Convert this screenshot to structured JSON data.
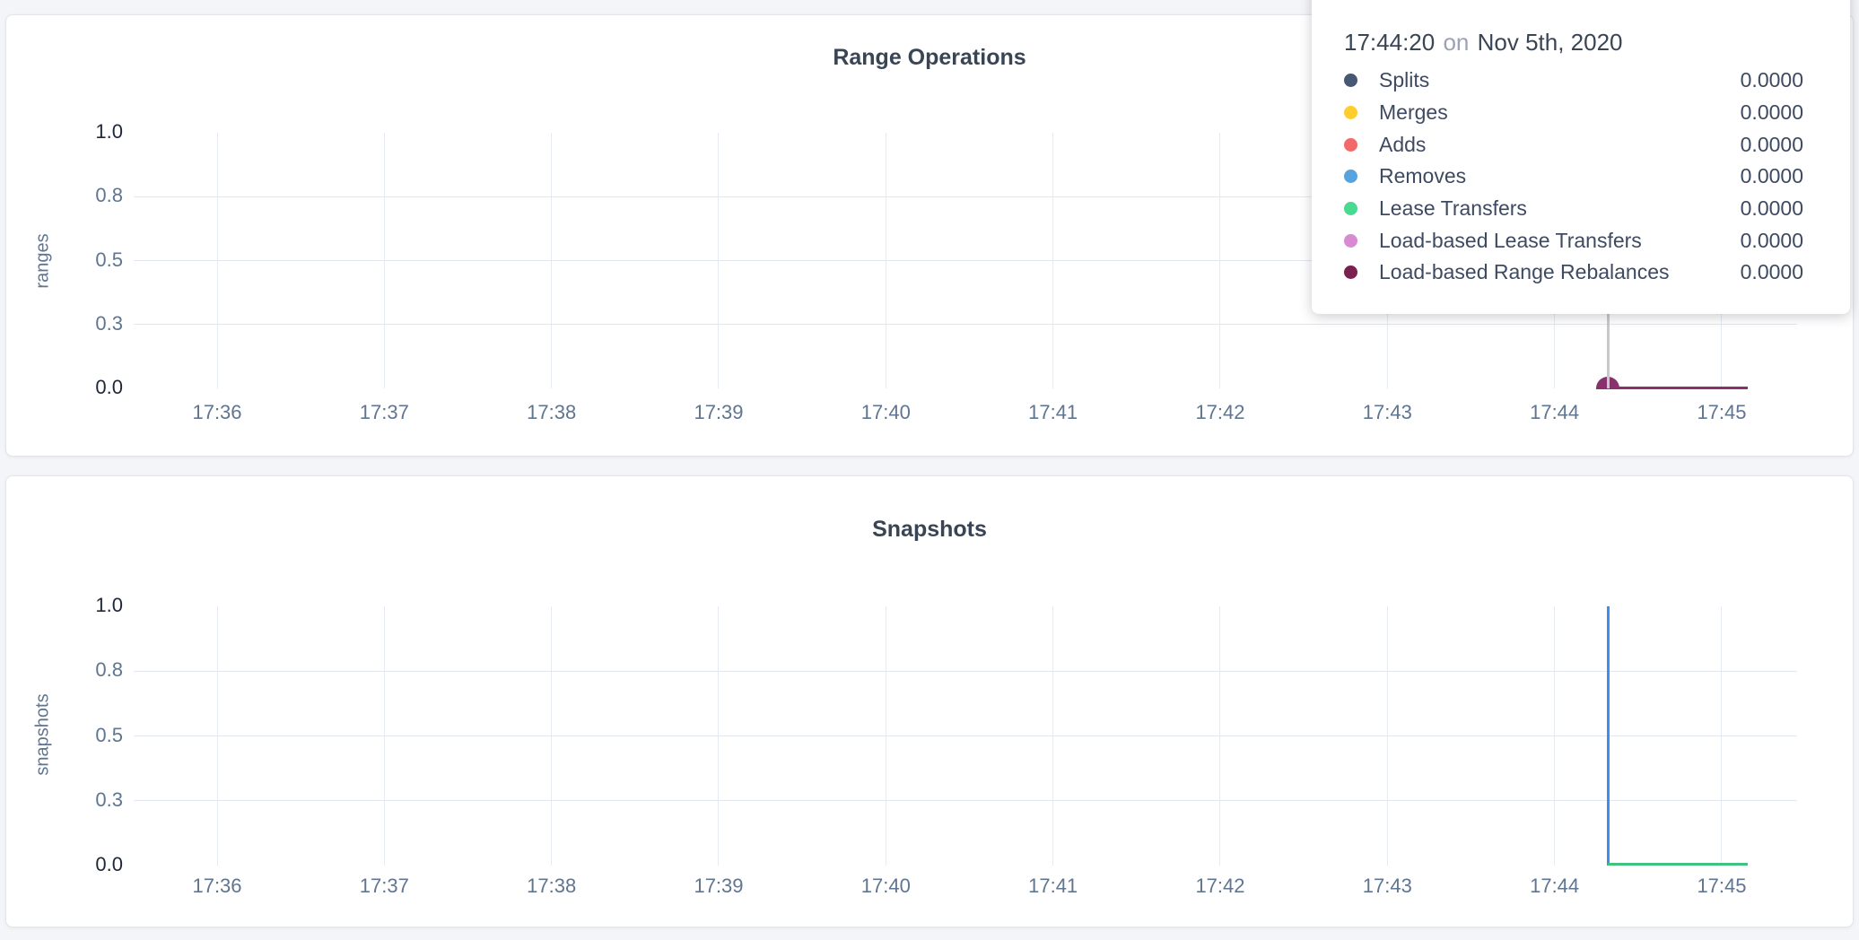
{
  "page": {
    "background_color": "#F4F5F9",
    "card_background_color": "#FFFFFF"
  },
  "charts": [
    {
      "title": "Range Operations",
      "ylabel": "ranges",
      "yticks": [
        "1.0",
        "0.8",
        "0.5",
        "0.3",
        "0.0"
      ],
      "xticks": [
        "17:36",
        "17:37",
        "17:38",
        "17:39",
        "17:40",
        "17:41",
        "17:42",
        "17:43",
        "17:44",
        "17:45"
      ]
    },
    {
      "title": "Snapshots",
      "ylabel": "snapshots",
      "yticks": [
        "1.0",
        "0.8",
        "0.5",
        "0.3",
        "0.0"
      ],
      "xticks": [
        "17:36",
        "17:37",
        "17:38",
        "17:39",
        "17:40",
        "17:41",
        "17:42",
        "17:43",
        "17:44",
        "17:45"
      ]
    }
  ],
  "tooltip": {
    "time": "17:44:20",
    "connector": "on",
    "date": "Nov 5th, 2020",
    "rows": [
      {
        "label": "Splits",
        "value": "0.0000",
        "color": "#475872"
      },
      {
        "label": "Merges",
        "value": "0.0000",
        "color": "#FFCD2F"
      },
      {
        "label": "Adds",
        "value": "0.0000",
        "color": "#F16969"
      },
      {
        "label": "Removes",
        "value": "0.0000",
        "color": "#55A3DF"
      },
      {
        "label": "Lease Transfers",
        "value": "0.0000",
        "color": "#49D990"
      },
      {
        "label": "Load-based Lease Transfers",
        "value": "0.0000",
        "color": "#D88BD2"
      },
      {
        "label": "Load-based Range Rebalances",
        "value": "0.0000",
        "color": "#7A2150"
      }
    ]
  },
  "chart_data": [
    {
      "type": "line",
      "title": "Range Operations",
      "xlabel": "",
      "ylabel": "ranges",
      "ylim": [
        0,
        1
      ],
      "yticks": [
        0.0,
        0.3,
        0.5,
        0.8,
        1.0
      ],
      "x": [
        "17:36",
        "17:37",
        "17:38",
        "17:39",
        "17:40",
        "17:41",
        "17:42",
        "17:43",
        "17:44",
        "17:45"
      ],
      "grid": true,
      "legend_position": "hover-tooltip",
      "data_window": {
        "start": "17:44:20",
        "end": "17:45:10"
      },
      "series": [
        {
          "name": "Splits",
          "color": "#475872",
          "points": [
            [
              "17:44:20",
              0
            ],
            [
              "17:45:10",
              0
            ]
          ]
        },
        {
          "name": "Merges",
          "color": "#FFCD2F",
          "points": [
            [
              "17:44:20",
              0
            ],
            [
              "17:45:10",
              0
            ]
          ]
        },
        {
          "name": "Adds",
          "color": "#F16969",
          "points": [
            [
              "17:44:20",
              0
            ],
            [
              "17:45:10",
              0
            ]
          ]
        },
        {
          "name": "Removes",
          "color": "#55A3DF",
          "points": [
            [
              "17:44:20",
              0
            ],
            [
              "17:45:10",
              0
            ]
          ]
        },
        {
          "name": "Lease Transfers",
          "color": "#49D990",
          "points": [
            [
              "17:44:20",
              0
            ],
            [
              "17:45:10",
              0
            ]
          ]
        },
        {
          "name": "Load-based Lease Transfers",
          "color": "#D88BD2",
          "points": [
            [
              "17:44:20",
              0
            ],
            [
              "17:45:10",
              0
            ]
          ]
        },
        {
          "name": "Load-based Range Rebalances",
          "color": "#87326D",
          "points": [
            [
              "17:44:20",
              0
            ],
            [
              "17:45:10",
              0
            ]
          ]
        }
      ],
      "hover": {
        "x": "17:44:20",
        "all_values": "0.0000",
        "marker_series": "Load-based Range Rebalances"
      }
    },
    {
      "type": "line",
      "title": "Snapshots",
      "xlabel": "",
      "ylabel": "snapshots",
      "ylim": [
        0,
        1
      ],
      "yticks": [
        0.0,
        0.3,
        0.5,
        0.8,
        1.0
      ],
      "x": [
        "17:36",
        "17:37",
        "17:38",
        "17:39",
        "17:40",
        "17:41",
        "17:42",
        "17:43",
        "17:44",
        "17:45"
      ],
      "grid": true,
      "legend_position": "none-visible",
      "data_window": {
        "start": "17:44:20",
        "end": "17:45:10"
      },
      "series": [
        {
          "name": "(unlabeled blue series)",
          "color": "#3B8FEE",
          "points": [
            [
              "17:44:20",
              1.0
            ],
            [
              "17:44:28",
              0.0
            ],
            [
              "17:45:10",
              0.0
            ]
          ]
        },
        {
          "name": "(unlabeled green series)",
          "color": "#3FC380",
          "points": [
            [
              "17:44:20",
              0.0
            ],
            [
              "17:45:10",
              0.0
            ]
          ]
        }
      ]
    }
  ]
}
